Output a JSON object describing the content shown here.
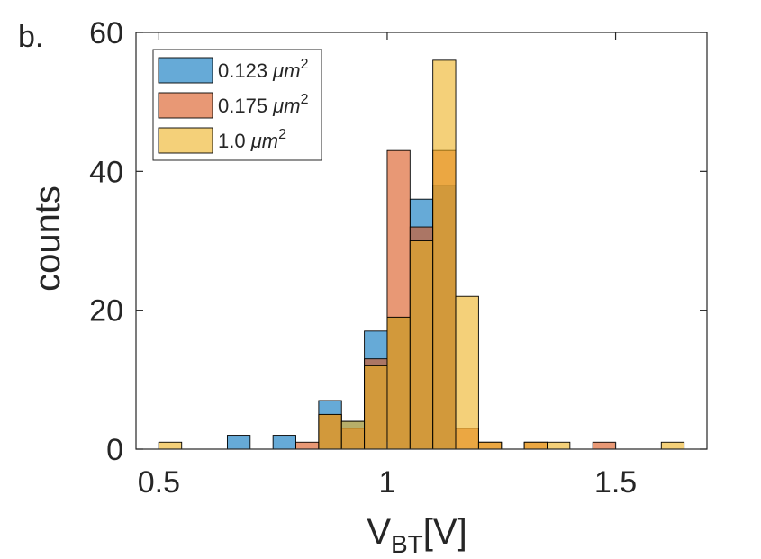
{
  "panel_label": "b.",
  "chart_data": {
    "type": "histogram",
    "xlabel_main": "V",
    "xlabel_sub": "BT",
    "xlabel_unit": "[V]",
    "ylabel": "counts",
    "xlim": [
      0.45,
      1.7
    ],
    "ylim": [
      0,
      60
    ],
    "xticks": [
      0.5,
      1.0,
      1.5
    ],
    "xtick_labels": [
      "0.5",
      "1",
      "1.5"
    ],
    "yticks": [
      0,
      20,
      40,
      60
    ],
    "ytick_labels": [
      "0",
      "20",
      "40",
      "60"
    ],
    "bin_width": 0.05,
    "legend_position": "top-left",
    "series": [
      {
        "name": "0.123 μm²",
        "label_main": "0.123 ",
        "label_unit": "μm",
        "label_sup": "2",
        "color": "#0072BD",
        "bins": [
          {
            "start": 0.65,
            "count": 2
          },
          {
            "start": 0.75,
            "count": 2
          },
          {
            "start": 0.85,
            "count": 7
          },
          {
            "start": 0.9,
            "count": 4
          },
          {
            "start": 0.95,
            "count": 17
          },
          {
            "start": 1.0,
            "count": 19
          },
          {
            "start": 1.05,
            "count": 36
          },
          {
            "start": 1.1,
            "count": 38
          },
          {
            "start": 1.15,
            "count": 0
          }
        ]
      },
      {
        "name": "0.175 μm²",
        "label_main": "0.175 ",
        "label_unit": "μm",
        "label_sup": "2",
        "color": "#D95319",
        "bins": [
          {
            "start": 0.8,
            "count": 1
          },
          {
            "start": 0.85,
            "count": 5
          },
          {
            "start": 0.9,
            "count": 3
          },
          {
            "start": 0.95,
            "count": 13
          },
          {
            "start": 1.0,
            "count": 43
          },
          {
            "start": 1.05,
            "count": 32
          },
          {
            "start": 1.1,
            "count": 43
          },
          {
            "start": 1.15,
            "count": 3
          },
          {
            "start": 1.2,
            "count": 1
          },
          {
            "start": 1.3,
            "count": 1
          },
          {
            "start": 1.45,
            "count": 1
          }
        ]
      },
      {
        "name": "1.0 μm²",
        "label_main": "1.0 ",
        "label_unit": "μm",
        "label_sup": "2",
        "color": "#EDB120",
        "bins": [
          {
            "start": 0.5,
            "count": 1
          },
          {
            "start": 0.85,
            "count": 5
          },
          {
            "start": 0.9,
            "count": 4
          },
          {
            "start": 0.95,
            "count": 12
          },
          {
            "start": 1.0,
            "count": 19
          },
          {
            "start": 1.05,
            "count": 30
          },
          {
            "start": 1.1,
            "count": 56
          },
          {
            "start": 1.15,
            "count": 22
          },
          {
            "start": 1.2,
            "count": 1
          },
          {
            "start": 1.3,
            "count": 1
          },
          {
            "start": 1.35,
            "count": 1
          },
          {
            "start": 1.6,
            "count": 1
          }
        ]
      }
    ]
  }
}
